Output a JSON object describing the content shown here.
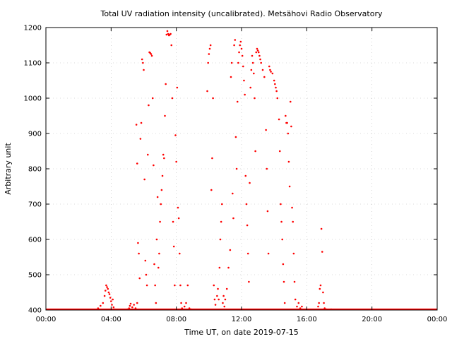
{
  "chart_data": {
    "type": "scatter",
    "title": "Total UV radiation intensity (uncalibrated). Metsähovi Radio Observatory",
    "xlabel": "Time UT, on date 2019-07-15",
    "ylabel": "Arbitrary unit",
    "xlim": [
      0,
      24
    ],
    "ylim": [
      400,
      1200
    ],
    "xticks": [
      0,
      4,
      8,
      12,
      16,
      20,
      24
    ],
    "xtick_labels": [
      "00:00",
      "04:00",
      "08:00",
      "12:00",
      "16:00",
      "20:00",
      "00:00"
    ],
    "yticks": [
      400,
      500,
      600,
      700,
      800,
      900,
      1000,
      1100,
      1200
    ],
    "ytick_labels": [
      "400",
      "500",
      "600",
      "700",
      "800",
      "900",
      "1000",
      "1100",
      "1200"
    ],
    "grid": true,
    "point_color": "#ff0000",
    "series": [
      {
        "x_unit": "hours UT",
        "points": [
          [
            3.2,
            405
          ],
          [
            3.35,
            412
          ],
          [
            3.5,
            420
          ],
          [
            3.6,
            440
          ],
          [
            3.65,
            455
          ],
          [
            3.7,
            470
          ],
          [
            3.75,
            465
          ],
          [
            3.8,
            460
          ],
          [
            3.85,
            450
          ],
          [
            3.9,
            445
          ],
          [
            3.95,
            435
          ],
          [
            4.0,
            425
          ],
          [
            4.05,
            415
          ],
          [
            4.1,
            430
          ],
          [
            4.15,
            408
          ],
          [
            4.2,
            402
          ],
          [
            5.0,
            402
          ],
          [
            5.1,
            405
          ],
          [
            5.15,
            412
          ],
          [
            5.2,
            418
          ],
          [
            5.3,
            408
          ],
          [
            5.4,
            415
          ],
          [
            5.5,
            405
          ],
          [
            5.6,
            420
          ],
          [
            5.55,
            925
          ],
          [
            5.6,
            815
          ],
          [
            5.65,
            590
          ],
          [
            5.7,
            560
          ],
          [
            5.75,
            490
          ],
          [
            5.8,
            885
          ],
          [
            5.85,
            930
          ],
          [
            5.9,
            1110
          ],
          [
            5.95,
            1100
          ],
          [
            6.0,
            1080
          ],
          [
            6.05,
            770
          ],
          [
            6.1,
            540
          ],
          [
            6.15,
            500
          ],
          [
            6.2,
            470
          ],
          [
            6.25,
            840
          ],
          [
            6.3,
            980
          ],
          [
            6.35,
            1130
          ],
          [
            6.4,
            1128
          ],
          [
            6.45,
            1125
          ],
          [
            6.5,
            1120
          ],
          [
            6.55,
            1000
          ],
          [
            6.6,
            810
          ],
          [
            6.65,
            530
          ],
          [
            6.7,
            470
          ],
          [
            6.75,
            420
          ],
          [
            6.8,
            600
          ],
          [
            6.85,
            720
          ],
          [
            6.9,
            520
          ],
          [
            6.95,
            560
          ],
          [
            7.0,
            650
          ],
          [
            7.05,
            700
          ],
          [
            7.1,
            740
          ],
          [
            7.15,
            780
          ],
          [
            7.2,
            840
          ],
          [
            7.25,
            830
          ],
          [
            7.3,
            950
          ],
          [
            7.35,
            1040
          ],
          [
            7.4,
            1180
          ],
          [
            7.45,
            1190
          ],
          [
            7.5,
            1182
          ],
          [
            7.55,
            1178
          ],
          [
            7.6,
            1180
          ],
          [
            7.65,
            1182
          ],
          [
            7.7,
            1150
          ],
          [
            7.75,
            1000
          ],
          [
            7.8,
            650
          ],
          [
            7.85,
            580
          ],
          [
            7.9,
            470
          ],
          [
            7.95,
            895
          ],
          [
            8.0,
            820
          ],
          [
            8.05,
            1030
          ],
          [
            8.1,
            690
          ],
          [
            8.15,
            660
          ],
          [
            8.2,
            560
          ],
          [
            8.25,
            470
          ],
          [
            8.3,
            420
          ],
          [
            8.35,
            405
          ],
          [
            8.4,
            402
          ],
          [
            8.5,
            410
          ],
          [
            8.6,
            420
          ],
          [
            8.7,
            470
          ],
          [
            8.8,
            405
          ],
          [
            8.9,
            402
          ],
          [
            9.9,
            1020
          ],
          [
            9.95,
            1100
          ],
          [
            10.0,
            1125
          ],
          [
            10.05,
            1140
          ],
          [
            10.1,
            1150
          ],
          [
            10.15,
            740
          ],
          [
            10.2,
            830
          ],
          [
            10.25,
            1000
          ],
          [
            10.3,
            470
          ],
          [
            10.35,
            430
          ],
          [
            10.4,
            415
          ],
          [
            10.5,
            440
          ],
          [
            10.55,
            460
          ],
          [
            10.6,
            430
          ],
          [
            10.65,
            520
          ],
          [
            10.7,
            600
          ],
          [
            10.75,
            650
          ],
          [
            10.8,
            700
          ],
          [
            10.85,
            420
          ],
          [
            10.9,
            440
          ],
          [
            10.95,
            410
          ],
          [
            11.0,
            430
          ],
          [
            11.1,
            460
          ],
          [
            11.2,
            520
          ],
          [
            11.3,
            570
          ],
          [
            11.35,
            1060
          ],
          [
            11.4,
            1100
          ],
          [
            11.45,
            730
          ],
          [
            11.5,
            660
          ],
          [
            11.55,
            1150
          ],
          [
            11.6,
            1165
          ],
          [
            11.65,
            890
          ],
          [
            11.7,
            800
          ],
          [
            11.75,
            990
          ],
          [
            11.8,
            1100
          ],
          [
            11.85,
            1130
          ],
          [
            11.9,
            1150
          ],
          [
            11.95,
            1160
          ],
          [
            12.0,
            1140
          ],
          [
            12.05,
            1120
          ],
          [
            12.1,
            1090
          ],
          [
            12.15,
            1050
          ],
          [
            12.2,
            1010
          ],
          [
            12.25,
            780
          ],
          [
            12.3,
            700
          ],
          [
            12.35,
            640
          ],
          [
            12.4,
            560
          ],
          [
            12.45,
            480
          ],
          [
            12.5,
            760
          ],
          [
            12.55,
            1030
          ],
          [
            12.6,
            1080
          ],
          [
            12.65,
            1120
          ],
          [
            12.7,
            1100
          ],
          [
            12.75,
            1070
          ],
          [
            12.8,
            1000
          ],
          [
            12.85,
            850
          ],
          [
            12.9,
            1130
          ],
          [
            12.95,
            1140
          ],
          [
            13.0,
            1135
          ],
          [
            13.05,
            1130
          ],
          [
            13.1,
            1120
          ],
          [
            13.15,
            1110
          ],
          [
            13.2,
            1100
          ],
          [
            13.3,
            1080
          ],
          [
            13.4,
            1060
          ],
          [
            13.5,
            910
          ],
          [
            13.55,
            800
          ],
          [
            13.6,
            680
          ],
          [
            13.65,
            560
          ],
          [
            13.7,
            1090
          ],
          [
            13.75,
            1080
          ],
          [
            13.8,
            1075
          ],
          [
            13.9,
            1070
          ],
          [
            14.0,
            1050
          ],
          [
            14.05,
            1040
          ],
          [
            14.1,
            1030
          ],
          [
            14.15,
            1020
          ],
          [
            14.2,
            1000
          ],
          [
            14.3,
            940
          ],
          [
            14.35,
            850
          ],
          [
            14.4,
            700
          ],
          [
            14.45,
            650
          ],
          [
            14.5,
            600
          ],
          [
            14.55,
            530
          ],
          [
            14.6,
            480
          ],
          [
            14.65,
            420
          ],
          [
            14.7,
            950
          ],
          [
            14.75,
            930
          ],
          [
            14.8,
            930
          ],
          [
            14.85,
            900
          ],
          [
            14.9,
            820
          ],
          [
            14.95,
            750
          ],
          [
            15.0,
            990
          ],
          [
            15.05,
            920
          ],
          [
            15.1,
            690
          ],
          [
            15.15,
            650
          ],
          [
            15.2,
            560
          ],
          [
            15.25,
            480
          ],
          [
            15.3,
            430
          ],
          [
            15.4,
            410
          ],
          [
            15.5,
            420
          ],
          [
            15.6,
            405
          ],
          [
            15.7,
            410
          ],
          [
            16.7,
            410
          ],
          [
            16.75,
            420
          ],
          [
            16.8,
            460
          ],
          [
            16.85,
            470
          ],
          [
            16.9,
            630
          ],
          [
            16.95,
            565
          ],
          [
            17.0,
            450
          ],
          [
            17.05,
            420
          ],
          [
            17.1,
            405
          ],
          [
            17.2,
            402
          ],
          [
            17.5,
            402
          ]
        ]
      }
    ]
  }
}
